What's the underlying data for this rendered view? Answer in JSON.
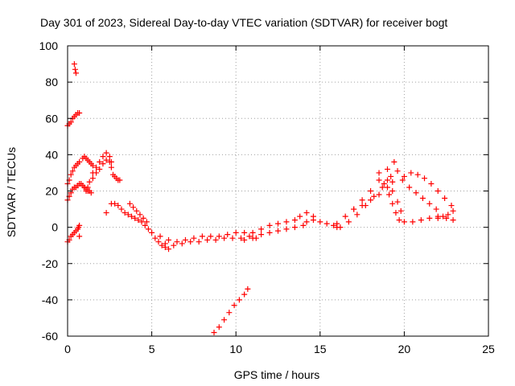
{
  "chart_data": {
    "type": "scatter",
    "title": "Day 301 of 2023, Sidereal Day-to-day VTEC variation (SDTVAR) for receiver bogt",
    "xlabel": "GPS time / hours",
    "ylabel": "SDTVAR / TECUs",
    "xlim": [
      0,
      25
    ],
    "ylim": [
      -60,
      100
    ],
    "xticks": [
      "0",
      "5",
      "10",
      "15",
      "20",
      "25"
    ],
    "yticks": [
      "-60",
      "-40",
      "-20",
      "0",
      "20",
      "40",
      "60",
      "80",
      "100"
    ],
    "grid": true,
    "marker": "+",
    "marker_color": "#ff0000",
    "series": [
      {
        "name": "s1",
        "x": [
          0.4,
          0.45,
          0.5
        ],
        "y": [
          90,
          87,
          85
        ]
      },
      {
        "name": "s2",
        "x": [
          0.0,
          0.1,
          0.2,
          0.3,
          0.4,
          0.5,
          0.6,
          0.7
        ],
        "y": [
          56,
          57,
          58,
          60,
          61,
          62,
          63,
          63
        ]
      },
      {
        "name": "s3",
        "x": [
          0.0,
          0.1,
          0.2,
          0.3,
          0.4,
          0.5,
          0.6,
          0.7
        ],
        "y": [
          24,
          26,
          29,
          31,
          33,
          34,
          35,
          36
        ]
      },
      {
        "name": "s4",
        "x": [
          0.0,
          0.1,
          0.2,
          0.3,
          0.4,
          0.5,
          0.6,
          0.7,
          0.8,
          0.9,
          1.0,
          1.1,
          1.2,
          1.3,
          1.4
        ],
        "y": [
          15,
          17,
          19,
          21,
          22,
          22,
          23,
          24,
          24,
          23,
          22,
          21,
          20,
          20,
          19
        ]
      },
      {
        "name": "s5",
        "x": [
          0.9,
          1.0,
          1.1,
          1.2,
          1.3,
          1.4,
          1.5
        ],
        "y": [
          38,
          39,
          38,
          37,
          36,
          35,
          34
        ]
      },
      {
        "name": "s6",
        "x": [
          0.0,
          0.1,
          0.2,
          0.3,
          0.4,
          0.5,
          0.6,
          0.65,
          0.7
        ],
        "y": [
          -8,
          -7,
          -5,
          -4,
          -3,
          -2,
          -1,
          0,
          1
        ]
      },
      {
        "name": "s7",
        "x": [
          0.7
        ],
        "y": [
          -5
        ]
      },
      {
        "name": "s8",
        "x": [
          1.0,
          1.1,
          1.2,
          1.3,
          1.5,
          1.7,
          1.9,
          2.1,
          2.3,
          2.5,
          2.6
        ],
        "y": [
          22,
          20,
          22,
          25,
          27,
          30,
          32,
          35,
          37,
          36,
          33
        ]
      },
      {
        "name": "s9",
        "x": [
          1.5,
          1.7,
          1.9,
          2.1,
          2.3,
          2.5,
          2.6
        ],
        "y": [
          30,
          33,
          36,
          39,
          41,
          39,
          36
        ]
      },
      {
        "name": "s10",
        "x": [
          2.7,
          2.8,
          2.9,
          3.0,
          3.1
        ],
        "y": [
          29,
          28,
          27,
          26,
          26
        ]
      },
      {
        "name": "s11",
        "x": [
          2.3
        ],
        "y": [
          8
        ]
      },
      {
        "name": "s12",
        "x": [
          2.6,
          2.8,
          3.0,
          3.2,
          3.4,
          3.6,
          3.8,
          4.0,
          4.2,
          4.4,
          4.6,
          4.8,
          5.0,
          5.2,
          5.4,
          5.6,
          5.8,
          6.0
        ],
        "y": [
          13,
          13,
          12,
          10,
          8,
          7,
          6,
          5,
          4,
          3,
          1,
          -1,
          -3,
          -6,
          -8,
          -10,
          -11,
          -12
        ]
      },
      {
        "name": "s13",
        "x": [
          3.7,
          3.9,
          4.1,
          4.3,
          4.5,
          4.7
        ],
        "y": [
          13,
          11,
          9,
          7,
          5,
          3
        ]
      },
      {
        "name": "s14",
        "x": [
          5.5,
          6.0,
          6.5,
          7.0,
          7.5,
          8.0,
          8.5,
          9.0,
          9.5,
          10.0,
          10.5
        ],
        "y": [
          -5,
          -7,
          -8,
          -7,
          -6,
          -5,
          -5,
          -5,
          -4,
          -3,
          -3
        ]
      },
      {
        "name": "s15",
        "x": [
          5.8,
          6.3,
          6.8,
          7.3,
          7.8,
          8.3,
          8.8,
          9.3,
          9.8,
          10.3,
          10.8,
          11.2
        ],
        "y": [
          -9,
          -10,
          -9,
          -8,
          -8,
          -7,
          -7,
          -6,
          -6,
          -6,
          -5,
          -6
        ]
      },
      {
        "name": "s16",
        "x": [
          8.7,
          9.0,
          9.3,
          9.6,
          9.9,
          10.2,
          10.5,
          10.7
        ],
        "y": [
          -58,
          -55,
          -51,
          -47,
          -43,
          -40,
          -37,
          -34
        ]
      },
      {
        "name": "s17",
        "x": [
          10.5,
          11.0,
          11.5,
          12.0,
          12.5,
          13.0,
          13.5,
          14.0
        ],
        "y": [
          -7,
          -6,
          -4,
          -3,
          -2,
          -1,
          0,
          1
        ]
      },
      {
        "name": "s18",
        "x": [
          11.0,
          11.5,
          12.0,
          12.5,
          13.0,
          13.5,
          13.8,
          14.2,
          14.6
        ],
        "y": [
          -3,
          -1,
          1,
          2,
          3,
          4,
          6,
          8,
          6
        ]
      },
      {
        "name": "s19",
        "x": [
          14.2,
          14.6,
          15.0,
          15.4,
          15.8,
          16.0
        ],
        "y": [
          3,
          4,
          3,
          2,
          1,
          0
        ]
      },
      {
        "name": "s20",
        "x": [
          16.0,
          16.5,
          17.0,
          17.5,
          18.0,
          18.5,
          19.0,
          19.4
        ],
        "y": [
          2,
          6,
          10,
          15,
          20,
          26,
          32,
          36
        ]
      },
      {
        "name": "s21",
        "x": [
          16.2,
          16.7,
          17.2,
          17.7,
          18.2,
          18.7,
          19.2,
          19.6
        ],
        "y": [
          0,
          3,
          7,
          12,
          17,
          22,
          28,
          31
        ]
      },
      {
        "name": "s22",
        "x": [
          17.0,
          17.5,
          18.0,
          18.5,
          19.0,
          19.3
        ],
        "y": [
          10,
          12,
          15,
          18,
          22,
          25
        ]
      },
      {
        "name": "s23",
        "x": [
          18.5,
          18.8,
          19.1,
          19.3,
          19.5,
          19.7
        ],
        "y": [
          30,
          24,
          18,
          13,
          8,
          4
        ]
      },
      {
        "name": "s24",
        "x": [
          19.0,
          19.3,
          19.6,
          19.8,
          20.0
        ],
        "y": [
          26,
          20,
          14,
          9,
          3
        ]
      },
      {
        "name": "s25",
        "x": [
          20.0,
          20.4,
          20.8,
          21.2,
          21.6,
          22.0,
          22.4,
          22.8
        ],
        "y": [
          28,
          30,
          29,
          27,
          24,
          20,
          16,
          12
        ]
      },
      {
        "name": "s26",
        "x": [
          19.9,
          20.3,
          20.7,
          21.1,
          21.5,
          21.9
        ],
        "y": [
          26,
          22,
          19,
          16,
          13,
          10
        ]
      },
      {
        "name": "s27",
        "x": [
          20.5,
          21.0,
          21.5,
          22.0,
          22.5,
          22.9
        ],
        "y": [
          3,
          4,
          5,
          6,
          5,
          4
        ]
      },
      {
        "name": "s28",
        "x": [
          22.0,
          22.3,
          22.6,
          22.9
        ],
        "y": [
          5,
          6,
          7,
          9
        ]
      }
    ]
  }
}
